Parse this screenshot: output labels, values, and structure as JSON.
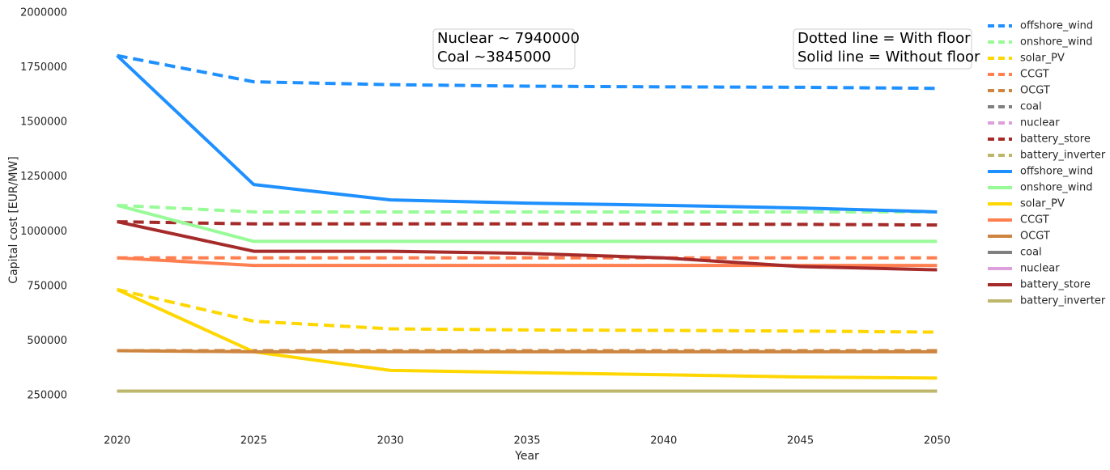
{
  "chart_data": {
    "type": "line",
    "x_label": "Year",
    "y_label": "Capital cost [EUR/MW]",
    "x": [
      2020,
      2025,
      2030,
      2035,
      2040,
      2045,
      2050
    ],
    "xlim": [
      2018.5,
      2051.5
    ],
    "xticks": [
      2020,
      2025,
      2030,
      2035,
      2040,
      2045,
      2050
    ],
    "ylim": [
      100000,
      2000000
    ],
    "yticks": [
      250000,
      500000,
      750000,
      1000000,
      1250000,
      1500000,
      1750000,
      2000000
    ],
    "grid": false,
    "legend": "outside upper right",
    "annotations": [
      {
        "lines": [
          "Nuclear ~ 7940000",
          "Coal ~3845000"
        ]
      },
      {
        "lines": [
          "Dotted line = With floor",
          "Solid line = Without floor"
        ]
      }
    ],
    "series": [
      {
        "name": "offshore_wind",
        "color": "#1e90ff",
        "dashed": true,
        "values": [
          1805000,
          1685000,
          1672000,
          1665000,
          1662000,
          1660000,
          1655000
        ]
      },
      {
        "name": "onshore_wind",
        "color": "#98fb98",
        "dashed": true,
        "values": [
          1120000,
          1090000,
          1090000,
          1090000,
          1090000,
          1090000,
          1090000
        ]
      },
      {
        "name": "solar_PV",
        "color": "#ffd700",
        "dashed": true,
        "values": [
          735000,
          590000,
          555000,
          550000,
          548000,
          545000,
          540000
        ]
      },
      {
        "name": "CCGT",
        "color": "#ff7f50",
        "dashed": true,
        "values": [
          880000,
          880000,
          880000,
          880000,
          880000,
          880000,
          880000
        ]
      },
      {
        "name": "OCGT",
        "color": "#cd853f",
        "dashed": true,
        "values": [
          455000,
          455000,
          455000,
          455000,
          455000,
          455000,
          455000
        ]
      },
      {
        "name": "coal",
        "color": "#808080",
        "dashed": true,
        "values": [
          3845000,
          3845000,
          3845000,
          3845000,
          3845000,
          3845000,
          3845000
        ]
      },
      {
        "name": "nuclear",
        "color": "#dda0dd",
        "dashed": true,
        "values": [
          7940000,
          7940000,
          7940000,
          7940000,
          7940000,
          7940000,
          7940000
        ]
      },
      {
        "name": "battery_store",
        "color": "#a52a2a",
        "dashed": true,
        "values": [
          1045000,
          1035000,
          1035000,
          1035000,
          1035000,
          1033000,
          1030000
        ]
      },
      {
        "name": "battery_inverter",
        "color": "#bdb76b",
        "dashed": true,
        "values": [
          270000,
          270000,
          270000,
          270000,
          270000,
          270000,
          270000
        ]
      },
      {
        "name": "offshore_wind",
        "color": "#1e90ff",
        "dashed": false,
        "values": [
          1805000,
          1215000,
          1145000,
          1130000,
          1120000,
          1108000,
          1090000
        ]
      },
      {
        "name": "onshore_wind",
        "color": "#98fb98",
        "dashed": false,
        "values": [
          1120000,
          955000,
          955000,
          955000,
          955000,
          955000,
          955000
        ]
      },
      {
        "name": "solar_PV",
        "color": "#ffd700",
        "dashed": false,
        "values": [
          735000,
          450000,
          365000,
          355000,
          345000,
          335000,
          330000
        ]
      },
      {
        "name": "CCGT",
        "color": "#ff7f50",
        "dashed": false,
        "values": [
          880000,
          845000,
          845000,
          845000,
          845000,
          845000,
          845000
        ]
      },
      {
        "name": "OCGT",
        "color": "#cd853f",
        "dashed": false,
        "values": [
          455000,
          450000,
          450000,
          450000,
          450000,
          450000,
          450000
        ]
      },
      {
        "name": "coal",
        "color": "#808080",
        "dashed": false,
        "values": [
          3845000,
          3845000,
          3845000,
          3845000,
          3845000,
          3845000,
          3845000
        ]
      },
      {
        "name": "nuclear",
        "color": "#dda0dd",
        "dashed": false,
        "values": [
          7940000,
          7940000,
          7940000,
          7940000,
          7940000,
          7940000,
          7940000
        ]
      },
      {
        "name": "battery_store",
        "color": "#a52a2a",
        "dashed": false,
        "values": [
          1045000,
          910000,
          910000,
          900000,
          880000,
          840000,
          825000
        ]
      },
      {
        "name": "battery_inverter",
        "color": "#bdb76b",
        "dashed": false,
        "values": [
          270000,
          270000,
          270000,
          270000,
          270000,
          270000,
          270000
        ]
      }
    ]
  }
}
